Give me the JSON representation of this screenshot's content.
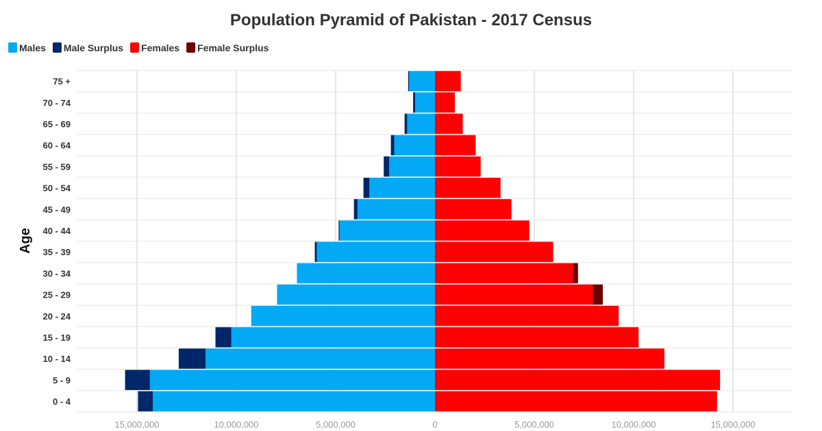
{
  "chart_data": {
    "type": "bar",
    "orientation": "horizontal-diverging",
    "title": "Population Pyramid of Pakistan - 2017 Census",
    "xlabel": "",
    "ylabel": "Age",
    "xlim": [
      -18000000,
      18000000
    ],
    "x_ticks": [
      -15000000,
      -10000000,
      -5000000,
      0,
      5000000,
      10000000,
      15000000
    ],
    "x_tick_labels": [
      "15,000,000",
      "10,000,000",
      "5,000,000",
      "0",
      "5,000,000",
      "10,000,000",
      "15,000,000"
    ],
    "legend_position": "top-left",
    "grid": true,
    "colors": {
      "males": "#03A9F4",
      "male_surplus": "#002868",
      "females": "#FF0000",
      "female_surplus": "#6B0000"
    },
    "categories": [
      "0 - 4",
      "5 - 9",
      "10 - 14",
      "15 - 19",
      "20 - 24",
      "25 - 29",
      "30 - 34",
      "35 - 39",
      "40 - 44",
      "45 - 49",
      "50 - 54",
      "55 - 59",
      "60 - 64",
      "65 - 69",
      "70 - 74",
      "75 +"
    ],
    "series": [
      {
        "name": "Males",
        "values": [
          14200000,
          14350000,
          11550000,
          10250000,
          9250000,
          7950000,
          6950000,
          5950000,
          4800000,
          3900000,
          3300000,
          2300000,
          2050000,
          1400000,
          1000000,
          1300000
        ]
      },
      {
        "name": "Male Surplus",
        "values": [
          750000,
          1250000,
          1350000,
          800000,
          0,
          0,
          0,
          100000,
          50000,
          180000,
          300000,
          280000,
          170000,
          130000,
          100000,
          50000
        ]
      },
      {
        "name": "Females",
        "values": [
          14200000,
          14350000,
          11550000,
          10250000,
          9250000,
          7950000,
          6950000,
          5950000,
          4750000,
          3850000,
          3300000,
          2300000,
          2050000,
          1400000,
          1000000,
          1300000
        ]
      },
      {
        "name": "Female Surplus",
        "values": [
          0,
          0,
          0,
          0,
          0,
          500000,
          250000,
          0,
          0,
          0,
          0,
          0,
          0,
          0,
          0,
          0
        ]
      }
    ]
  }
}
